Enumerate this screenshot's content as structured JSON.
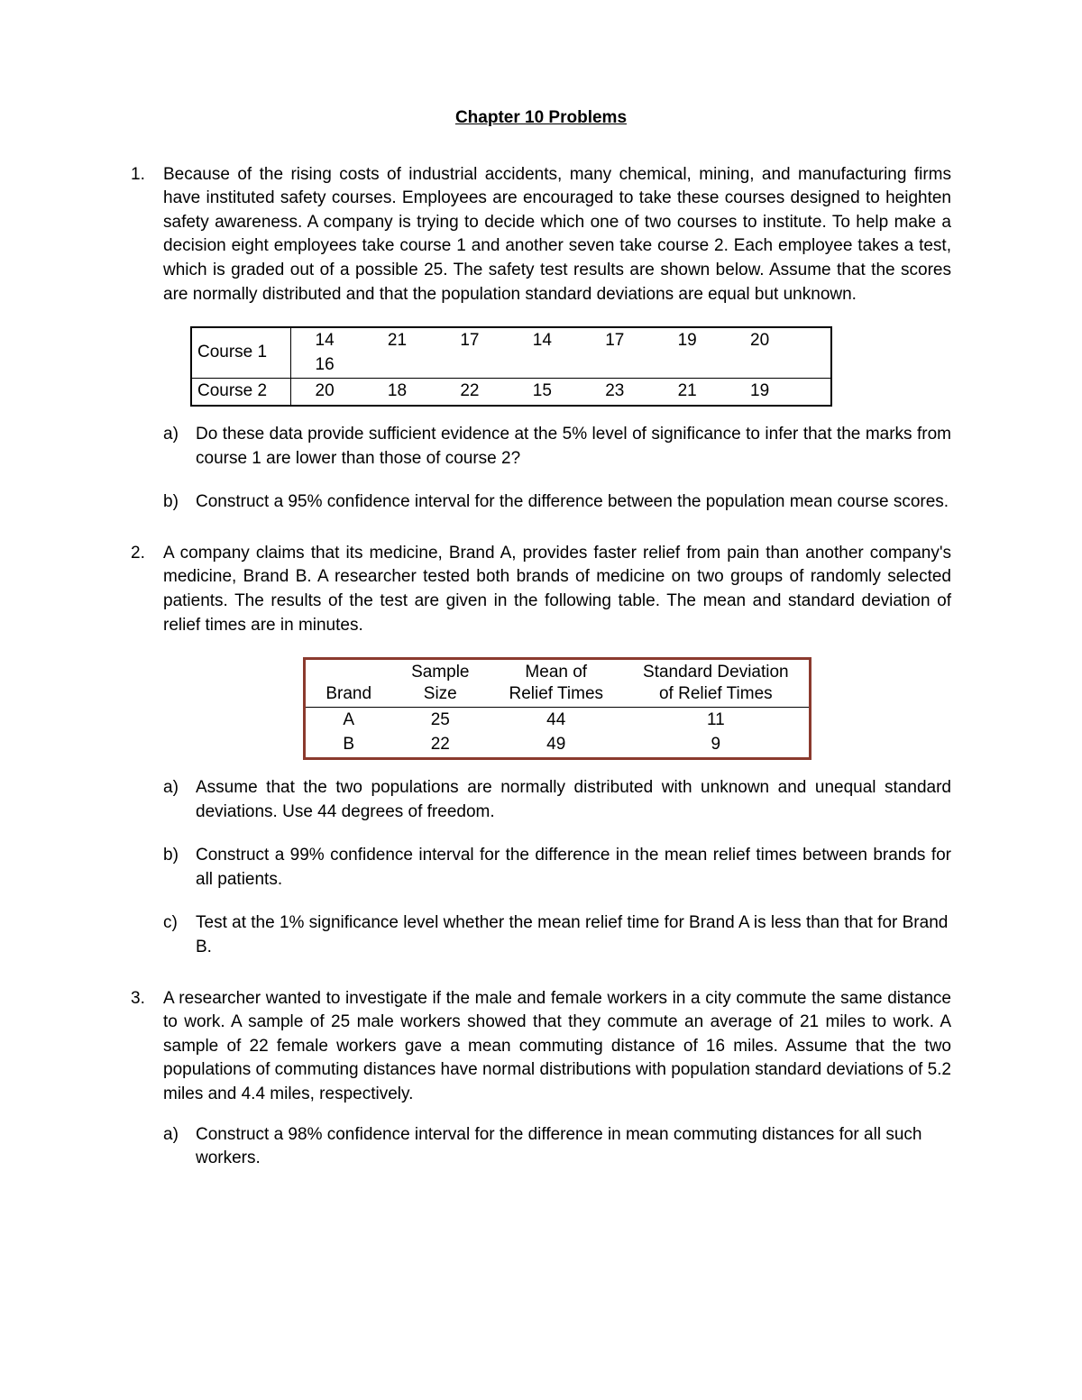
{
  "title": "Chapter 10 Problems",
  "problems": [
    {
      "text": "Because of the rising costs of industrial accidents, many chemical, mining, and manufacturing firms have instituted safety courses. Employees are encouraged to take these courses designed to heighten safety awareness. A company is trying to decide which one of two courses to institute. To help make a decision eight employees take course 1 and another seven take course 2. Each employee takes a test, which is graded out of a possible 25. The safety test results are shown below. Assume that the scores are normally distributed and that the population standard deviations are equal but unknown.",
      "course_table": {
        "type": "table",
        "border_color": "#000000",
        "rows": [
          {
            "label": "Course 1",
            "values": [
              "14",
              "21",
              "17",
              "14",
              "17",
              "19",
              "20",
              "16"
            ]
          },
          {
            "label": "Course 2",
            "values": [
              "20",
              "18",
              "22",
              "15",
              "23",
              "21",
              "19"
            ]
          }
        ]
      },
      "subparts": [
        "Do these data provide sufficient evidence at the 5% level of significance to infer that the marks from course 1 are lower than those of course 2?",
        "Construct a 95% confidence interval for the difference between the population mean course scores."
      ]
    },
    {
      "text": "A company claims that its medicine, Brand A, provides faster relief from pain than another company's medicine, Brand B. A researcher tested both brands of medicine on two groups of randomly selected patients. The results of the test are given in the following table. The mean and standard deviation of relief times are in minutes.",
      "brand_table": {
        "type": "table",
        "border_color": "#8b3a2e",
        "columns": [
          "Brand",
          "Sample\nSize",
          "Mean of\nRelief Times",
          "Standard Deviation\nof Relief Times"
        ],
        "rows": [
          [
            "A",
            "25",
            "44",
            "11"
          ],
          [
            "B",
            "22",
            "49",
            "9"
          ]
        ]
      },
      "subparts": [
        "Assume that the two populations are normally distributed with unknown and unequal standard deviations. Use 44 degrees of freedom.",
        "Construct a 99% confidence interval for the difference in the mean relief times between brands for all patients.",
        "Test at the 1% significance level whether the mean relief time for Brand A is less than that for Brand B."
      ]
    },
    {
      "text": "A researcher wanted to investigate if the male and female workers in a city commute the same distance to work. A sample of 25 male workers showed that they commute an average of 21 miles to work. A sample of 22 female workers gave a mean commuting distance of 16 miles. Assume that the two populations of commuting distances have normal distributions with population standard deviations of 5.2 miles and 4.4 miles, respectively.",
      "subparts": [
        "Construct a 98% confidence interval for the difference in mean commuting distances for all such workers."
      ]
    }
  ]
}
